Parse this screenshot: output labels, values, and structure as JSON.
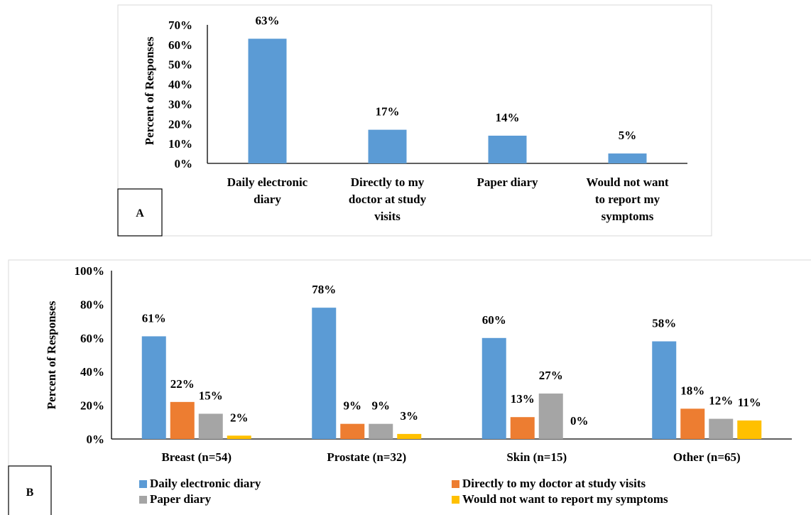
{
  "colors": {
    "blue": "#5B9BD5",
    "orange": "#ED7D31",
    "gray": "#A5A5A5",
    "yellow": "#FFC000"
  },
  "chart_data": [
    {
      "id": "A",
      "type": "bar",
      "panel_label": "A",
      "title": "",
      "xlabel": "",
      "ylabel": "Percent of Responses",
      "ylim": [
        0,
        70
      ],
      "ytick_labels": [
        "0%",
        "10%",
        "20%",
        "30%",
        "40%",
        "50%",
        "60%",
        "70%"
      ],
      "grid": false,
      "categories": [
        [
          "Daily electronic",
          "diary"
        ],
        [
          "Directly to my",
          "doctor at study",
          "visits"
        ],
        [
          "Paper diary"
        ],
        [
          "Would not want",
          "to report my",
          "symptoms"
        ]
      ],
      "values": [
        63,
        17,
        14,
        5
      ],
      "data_labels": [
        "63%",
        "17%",
        "14%",
        "5%"
      ],
      "color": "#5B9BD5"
    },
    {
      "id": "B",
      "type": "bar",
      "panel_label": "B",
      "title": "",
      "xlabel": "",
      "ylabel": "Percent of Responses",
      "ylim": [
        0,
        100
      ],
      "ytick_labels": [
        "0%",
        "20%",
        "40%",
        "60%",
        "80%",
        "100%"
      ],
      "grid": false,
      "legend_position": "bottom",
      "categories": [
        "Breast (n=54)",
        "Prostate (n=32)",
        "Skin (n=15)",
        "Other (n=65)"
      ],
      "series": [
        {
          "name": "Daily electronic diary",
          "color": "#5B9BD5",
          "values": [
            61,
            78,
            60,
            58
          ],
          "labels": [
            "61%",
            "78%",
            "60%",
            "58%"
          ]
        },
        {
          "name": "Directly to my doctor at study visits",
          "color": "#ED7D31",
          "values": [
            22,
            9,
            13,
            18
          ],
          "labels": [
            "22%",
            "9%",
            "13%",
            "18%"
          ]
        },
        {
          "name": "Paper diary",
          "color": "#A5A5A5",
          "values": [
            15,
            9,
            27,
            12
          ],
          "labels": [
            "15%",
            "9%",
            "27%",
            "12%"
          ]
        },
        {
          "name": "Would not want to report my symptoms",
          "color": "#FFC000",
          "values": [
            2,
            3,
            0,
            11
          ],
          "labels": [
            "2%",
            "3%",
            "0%",
            "11%"
          ]
        }
      ]
    }
  ]
}
